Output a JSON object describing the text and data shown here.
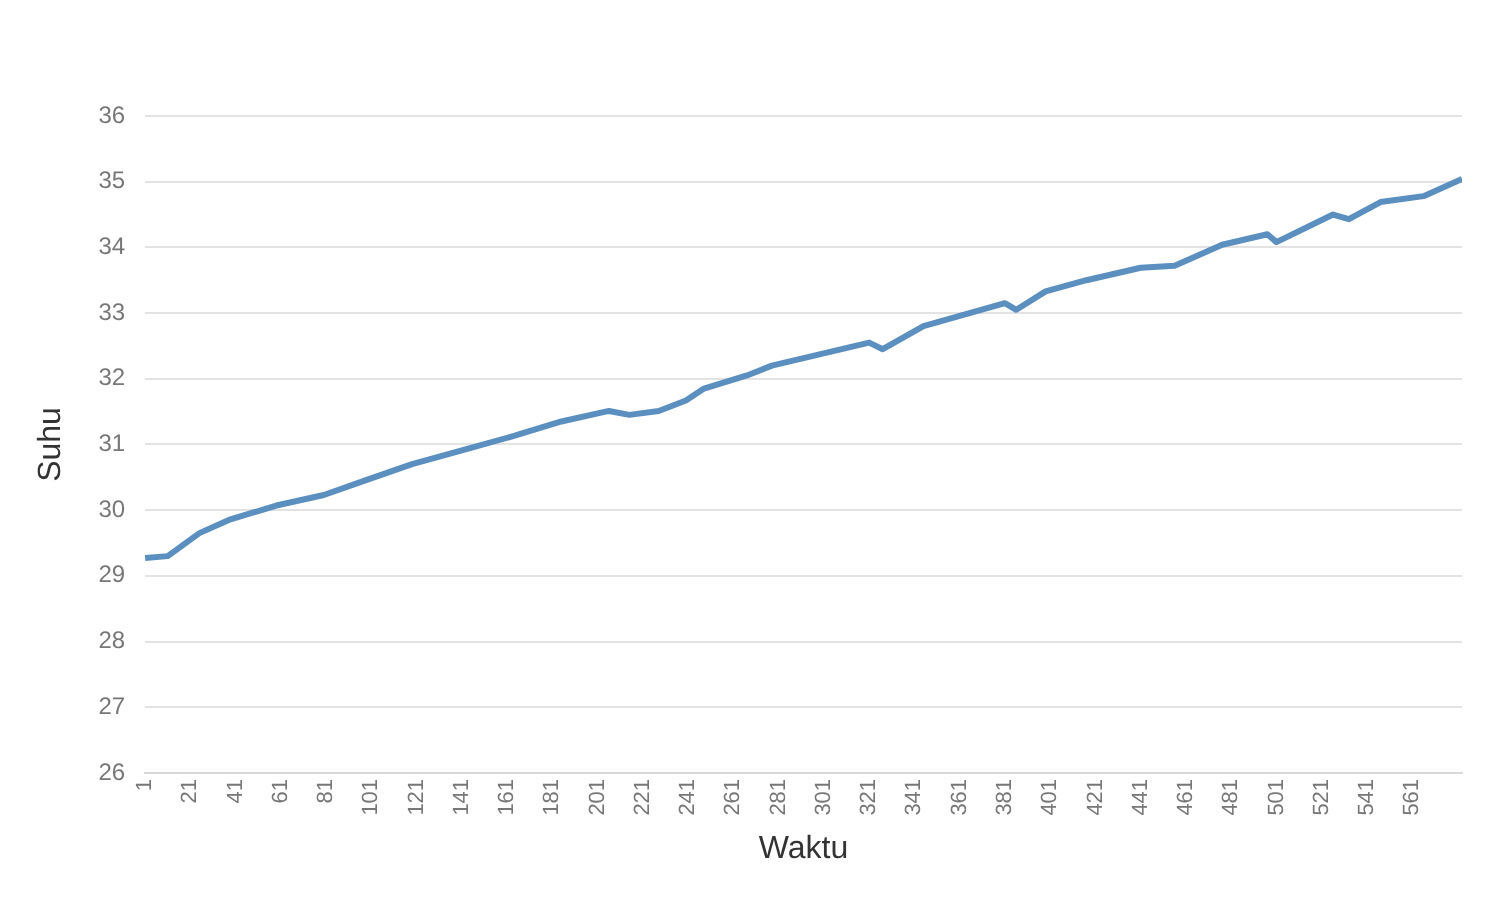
{
  "chart_data": {
    "type": "line",
    "xlabel": "Waktu",
    "ylabel": "Suhu",
    "x": [
      1,
      11,
      25,
      38,
      59,
      80,
      98,
      119,
      143,
      164,
      185,
      206,
      215,
      228,
      240,
      248,
      267,
      278,
      321,
      327,
      345,
      381,
      386,
      399,
      417,
      441,
      456,
      477,
      497,
      501,
      526,
      533,
      547,
      566,
      583
    ],
    "series": [
      {
        "color": "#5b8fc0",
        "values": [
          29.27,
          29.3,
          29.65,
          29.85,
          30.07,
          30.23,
          30.45,
          30.7,
          30.93,
          31.13,
          31.35,
          31.51,
          31.45,
          31.51,
          31.67,
          31.85,
          32.05,
          32.2,
          32.55,
          32.45,
          32.8,
          33.15,
          33.05,
          33.33,
          33.5,
          33.69,
          33.72,
          34.04,
          34.2,
          34.08,
          34.5,
          34.43,
          34.69,
          34.78,
          35.04
        ]
      }
    ],
    "xlim": [
      1,
      583
    ],
    "xticks": [
      1,
      21,
      41,
      61,
      81,
      101,
      121,
      141,
      161,
      181,
      201,
      221,
      241,
      261,
      281,
      301,
      321,
      341,
      361,
      381,
      401,
      421,
      441,
      461,
      481,
      501,
      521,
      541,
      561
    ],
    "ylim": [
      26,
      36
    ],
    "yticks": [
      26,
      27,
      28,
      29,
      30,
      31,
      32,
      33,
      34,
      35,
      36
    ],
    "grid": "y",
    "legend": false,
    "marker": "none",
    "line_style": "solid"
  }
}
